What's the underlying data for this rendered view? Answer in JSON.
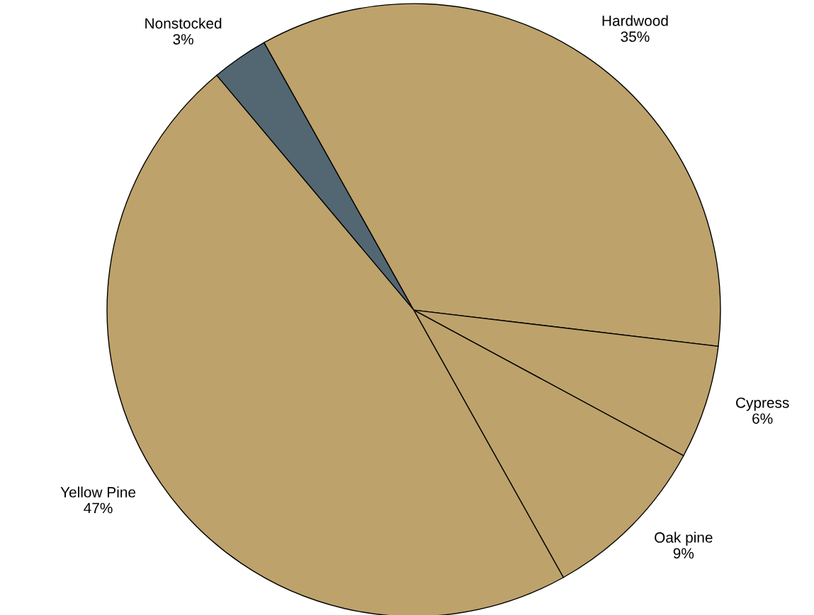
{
  "chart_data": {
    "type": "pie",
    "categories": [
      "Nonstocked",
      "Hardwood",
      "Cypress",
      "Oak pine",
      "Yellow Pine"
    ],
    "values": [
      3,
      35,
      6,
      9,
      47
    ],
    "colors": [
      "#526772",
      "#bda26b",
      "#bda26b",
      "#bda26b",
      "#bda26b"
    ],
    "value_labels": [
      "3%",
      "35%",
      "6%",
      "9%",
      "47%"
    ],
    "legend": false
  }
}
